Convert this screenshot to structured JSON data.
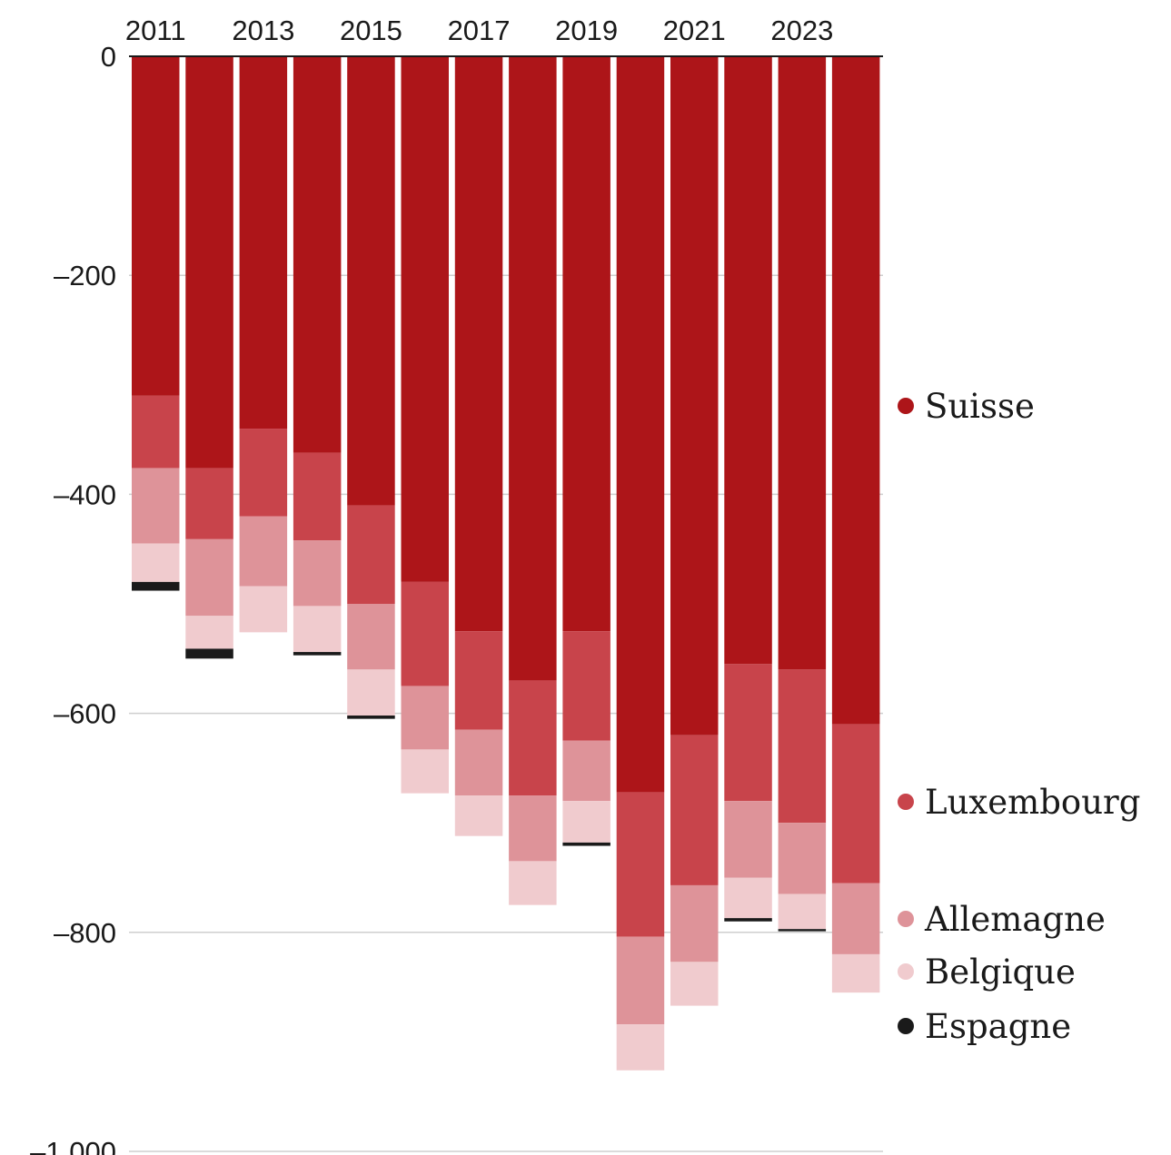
{
  "chart_data": {
    "type": "bar",
    "stacked": true,
    "title": "",
    "xlabel": "",
    "ylabel": "",
    "ylim": [
      -1000,
      0
    ],
    "y_ticks": [
      0,
      -200,
      -400,
      -600,
      -800,
      -1000
    ],
    "y_tick_labels": [
      "0",
      "–200",
      "–400",
      "–600",
      "–800",
      "–1.000"
    ],
    "x_tick_labels": [
      "2011",
      "2013",
      "2015",
      "2017",
      "2019",
      "2021",
      "2023"
    ],
    "x_axis_position": "top",
    "grid": "horizontal",
    "legend_placement": "right",
    "categories": [
      "2011",
      "2012",
      "2013",
      "2014",
      "2015",
      "2016",
      "2017",
      "2018",
      "2019",
      "2020",
      "2021",
      "2022",
      "2023",
      "2024"
    ],
    "series": [
      {
        "name": "Suisse",
        "color": "#ad1519",
        "values": [
          -310,
          -376,
          -340,
          -362,
          -410,
          -480,
          -525,
          -570,
          -525,
          -672,
          -620,
          -555,
          -560,
          -610
        ]
      },
      {
        "name": "Luxembourg",
        "color": "#c8444b",
        "values": [
          -66,
          -65,
          -80,
          -80,
          -90,
          -95,
          -90,
          -105,
          -100,
          -132,
          -137,
          -125,
          -140,
          -145
        ]
      },
      {
        "name": "Allemagne",
        "color": "#de9399",
        "values": [
          -69,
          -70,
          -64,
          -60,
          -60,
          -58,
          -60,
          -60,
          -55,
          -80,
          -70,
          -70,
          -65,
          -65
        ]
      },
      {
        "name": "Belgique",
        "color": "#f0cbce",
        "values": [
          -35,
          -30,
          -42,
          -42,
          -42,
          -40,
          -37,
          -40,
          -38,
          -42,
          -40,
          -37,
          -32,
          -35
        ]
      },
      {
        "name": "Espagne",
        "color": "#1a1a1a",
        "values": [
          -8,
          -9,
          0,
          -3,
          -3,
          0,
          0,
          0,
          -3,
          0,
          0,
          -3,
          -2,
          0
        ]
      }
    ]
  }
}
